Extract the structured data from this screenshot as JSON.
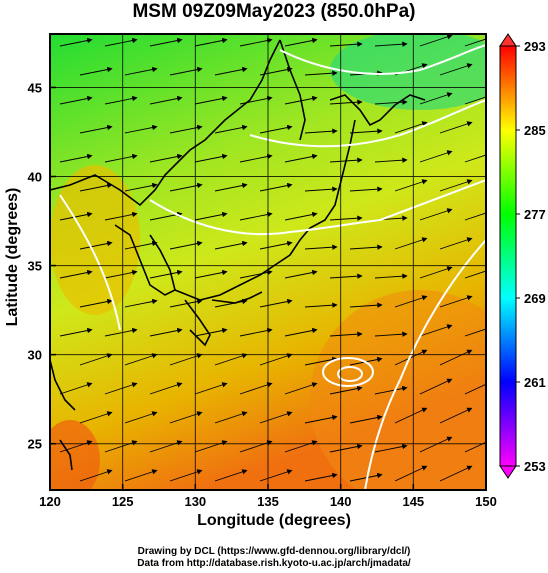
{
  "title": "MSM 09Z09May2023 (850.0hPa)",
  "map": {
    "x_axis": {
      "label": "Longitude (degrees)",
      "min": 120,
      "max": 150,
      "ticks": [
        120,
        125,
        130,
        135,
        140,
        145,
        150
      ]
    },
    "y_axis": {
      "label": "Latitude  (degrees)",
      "min": 22.4,
      "max": 48,
      "ticks": [
        25,
        30,
        35,
        40,
        45
      ]
    },
    "colorbar": {
      "min": 253,
      "max": 293,
      "ticks": [
        293,
        285,
        277,
        269,
        261,
        253
      ],
      "colors": [
        "#ff00ff",
        "#0000ff",
        "#00ffff",
        "#00ff00",
        "#ffff00",
        "#ff0000"
      ]
    },
    "grid": true,
    "colors": {
      "frame": "#000000",
      "contour": "#ffffff",
      "coast": "#000000",
      "stream": "#000000"
    }
  },
  "footer": {
    "line1": "Drawing by DCL (https://www.gfd-dennou.org/library/dcl/)",
    "line2": "Data from http://database.rish.kyoto-u.ac.jp/arch/jmadata/"
  }
}
